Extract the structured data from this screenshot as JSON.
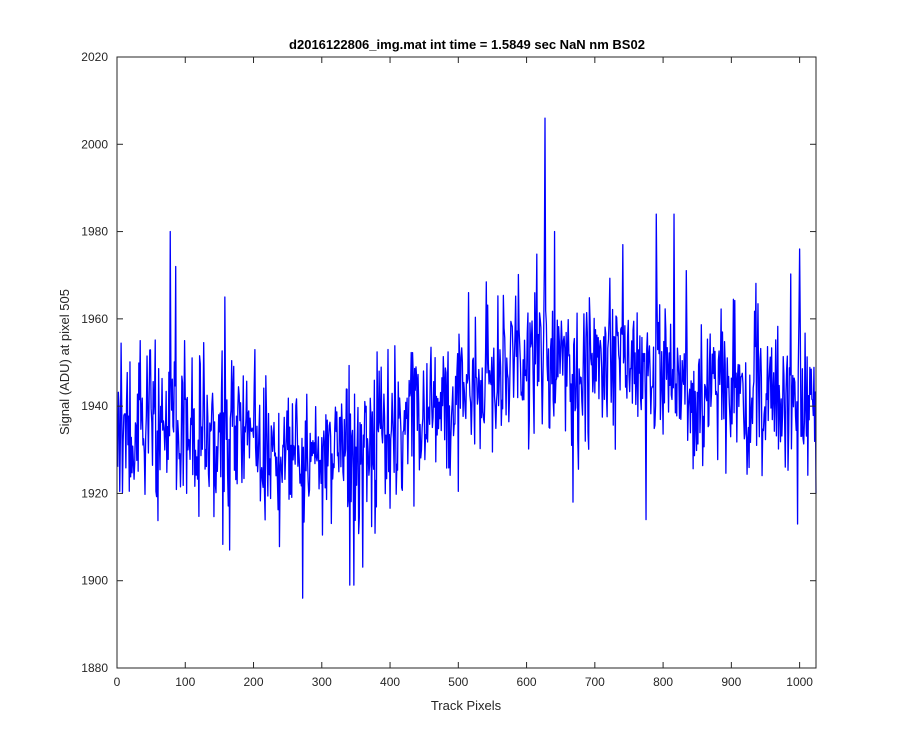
{
  "chart_data": {
    "type": "line",
    "title": "d2016122806_img.mat int time = 1.5849 sec  NaN nm BS02",
    "xlabel": "Track Pixels",
    "ylabel": "Signal (ADU) at pixel 505",
    "xlim": [
      0,
      1024
    ],
    "ylim": [
      1880,
      2020
    ],
    "xticks": [
      0,
      100,
      200,
      300,
      400,
      500,
      600,
      700,
      800,
      900,
      1000
    ],
    "yticks": [
      1880,
      1900,
      1920,
      1940,
      1960,
      1980,
      2000,
      2020
    ],
    "grid": false,
    "line_color": "#0000ff",
    "series": [
      {
        "name": "",
        "x_start": 1,
        "x_step": 1,
        "trend_points": [
          [
            0,
            1932
          ],
          [
            100,
            1935
          ],
          [
            200,
            1932
          ],
          [
            300,
            1928
          ],
          [
            350,
            1930
          ],
          [
            400,
            1935
          ],
          [
            450,
            1938
          ],
          [
            500,
            1942
          ],
          [
            550,
            1947
          ],
          [
            600,
            1950
          ],
          [
            650,
            1951
          ],
          [
            700,
            1949
          ],
          [
            800,
            1948
          ],
          [
            900,
            1944
          ],
          [
            1000,
            1942
          ],
          [
            1024,
            1943
          ]
        ],
        "noise_sd": 9,
        "spikes": [
          {
            "x": 78,
            "y": 1980
          },
          {
            "x": 86,
            "y": 1972
          },
          {
            "x": 158,
            "y": 1965
          },
          {
            "x": 272,
            "y": 1896
          },
          {
            "x": 341,
            "y": 1899
          },
          {
            "x": 347,
            "y": 1899
          },
          {
            "x": 515,
            "y": 1966
          },
          {
            "x": 627,
            "y": 2006
          },
          {
            "x": 641,
            "y": 1980
          },
          {
            "x": 668,
            "y": 1918
          },
          {
            "x": 741,
            "y": 1977
          },
          {
            "x": 775,
            "y": 1914
          },
          {
            "x": 790,
            "y": 1984
          },
          {
            "x": 816,
            "y": 1984
          },
          {
            "x": 997,
            "y": 1913
          },
          {
            "x": 1000,
            "y": 1976
          }
        ]
      }
    ]
  }
}
